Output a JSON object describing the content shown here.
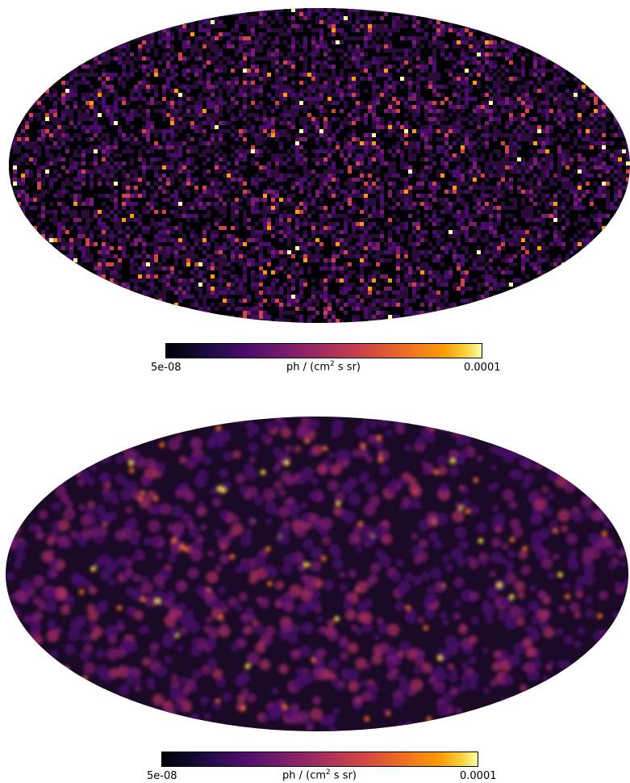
{
  "chart_data": [
    {
      "type": "heatmap",
      "projection": "mollweide",
      "colormap": "inferno",
      "color_scale": "log",
      "colorbar": {
        "min_label": "5e-08",
        "max_label": "0.0001",
        "label_prefix": "ph / (cm",
        "label_sup": "2",
        "label_suffix": " s sr)",
        "vmin": 5e-08,
        "vmax": 0.0001,
        "placement": "bottom"
      }
    },
    {
      "type": "heatmap",
      "projection": "mollweide",
      "colormap": "inferno",
      "color_scale": "log",
      "colorbar": {
        "min_label": "5e-08",
        "max_label": "0.0001",
        "label_prefix": "ph / (cm",
        "label_sup": "2",
        "label_suffix": " s sr)",
        "vmin": 5e-08,
        "vmax": 0.0001,
        "placement": "bottom"
      }
    }
  ]
}
